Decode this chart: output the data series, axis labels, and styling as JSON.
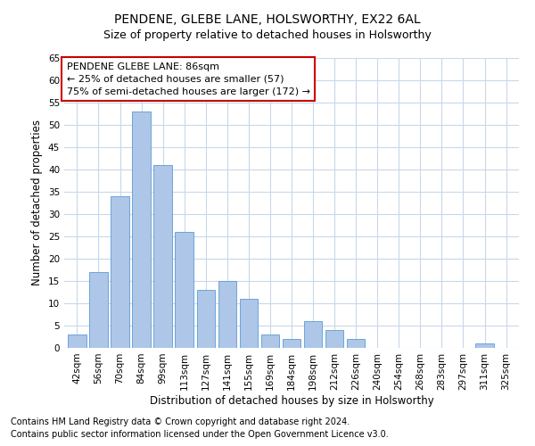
{
  "title": "PENDENE, GLEBE LANE, HOLSWORTHY, EX22 6AL",
  "subtitle": "Size of property relative to detached houses in Holsworthy",
  "xlabel": "Distribution of detached houses by size in Holsworthy",
  "ylabel": "Number of detached properties",
  "categories": [
    "42sqm",
    "56sqm",
    "70sqm",
    "84sqm",
    "99sqm",
    "113sqm",
    "127sqm",
    "141sqm",
    "155sqm",
    "169sqm",
    "184sqm",
    "198sqm",
    "212sqm",
    "226sqm",
    "240sqm",
    "254sqm",
    "268sqm",
    "283sqm",
    "297sqm",
    "311sqm",
    "325sqm"
  ],
  "values": [
    3,
    17,
    34,
    53,
    41,
    26,
    13,
    15,
    11,
    3,
    2,
    6,
    4,
    2,
    0,
    0,
    0,
    0,
    0,
    1,
    0
  ],
  "bar_color": "#aec6e8",
  "bar_edge_color": "#5b9bd5",
  "ylim": [
    0,
    65
  ],
  "yticks": [
    0,
    5,
    10,
    15,
    20,
    25,
    30,
    35,
    40,
    45,
    50,
    55,
    60,
    65
  ],
  "annotation_line1": "PENDENE GLEBE LANE: 86sqm",
  "annotation_line2": "← 25% of detached houses are smaller (57)",
  "annotation_line3": "75% of semi-detached houses are larger (172) →",
  "annotation_box_color": "#ffffff",
  "annotation_box_edge": "#cc0000",
  "footnote1": "Contains HM Land Registry data © Crown copyright and database right 2024.",
  "footnote2": "Contains public sector information licensed under the Open Government Licence v3.0.",
  "bg_color": "#ffffff",
  "grid_color": "#c8d8ea",
  "title_fontsize": 10,
  "subtitle_fontsize": 9,
  "axis_label_fontsize": 8.5,
  "tick_fontsize": 7.5,
  "annotation_fontsize": 8,
  "footnote_fontsize": 7
}
